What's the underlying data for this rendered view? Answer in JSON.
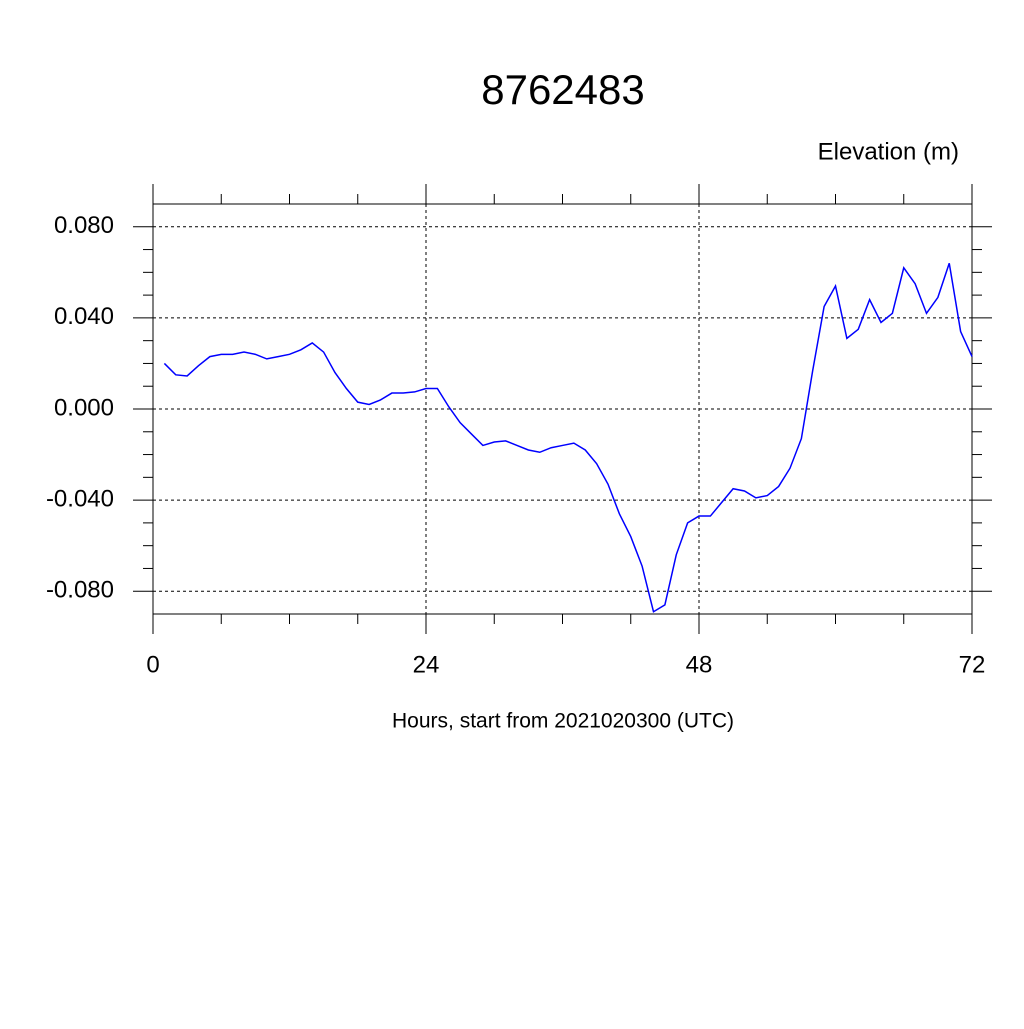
{
  "chart_data": {
    "type": "line",
    "title": "8762483",
    "ylabel": "Elevation (m)",
    "xlabel": "Hours, start from 2021020300 (UTC)",
    "x": [
      1,
      2,
      3,
      4,
      5,
      6,
      7,
      8,
      9,
      10,
      11,
      12,
      13,
      14,
      15,
      16,
      17,
      18,
      19,
      20,
      21,
      22,
      23,
      24,
      25,
      26,
      27,
      28,
      29,
      30,
      31,
      32,
      33,
      34,
      35,
      36,
      37,
      38,
      39,
      40,
      41,
      42,
      43,
      44,
      45,
      46,
      47,
      48,
      49,
      50,
      51,
      52,
      53,
      54,
      55,
      56,
      57,
      58,
      59,
      60,
      61,
      62,
      63,
      64,
      65,
      66,
      67,
      68,
      69,
      70,
      71,
      72
    ],
    "series": [
      {
        "color": "#0000ff",
        "values": [
          0.02,
          0.015,
          0.0145,
          0.019,
          0.023,
          0.024,
          0.024,
          0.025,
          0.024,
          0.022,
          0.023,
          0.024,
          0.026,
          0.029,
          0.025,
          0.016,
          0.009,
          0.003,
          0.002,
          0.004,
          0.007,
          0.007,
          0.0075,
          0.009,
          0.009,
          0.001,
          -0.006,
          -0.011,
          -0.016,
          -0.0145,
          -0.014,
          -0.016,
          -0.018,
          -0.019,
          -0.017,
          -0.016,
          -0.015,
          -0.018,
          -0.024,
          -0.033,
          -0.046,
          -0.056,
          -0.069,
          -0.089,
          -0.086,
          -0.064,
          -0.05,
          -0.047,
          -0.047,
          -0.041,
          -0.035,
          -0.036,
          -0.039,
          -0.038,
          -0.034,
          -0.026,
          -0.013,
          0.017,
          0.045,
          0.054,
          0.031,
          0.035,
          0.048,
          0.038,
          0.042,
          0.062,
          0.055,
          0.042,
          0.049,
          0.064,
          0.034,
          0.023
        ]
      }
    ],
    "xlim": [
      0,
      72
    ],
    "xticks": [
      0,
      24,
      48,
      72
    ],
    "ylim": [
      -0.09,
      0.09
    ],
    "yticks": [
      {
        "value": -0.08,
        "label": "-0.080"
      },
      {
        "value": -0.04,
        "label": "-0.040"
      },
      {
        "value": 0,
        "label": "0.000"
      },
      {
        "value": 0.04,
        "label": "0.040"
      },
      {
        "value": 0.08,
        "label": "0.080"
      }
    ],
    "grid": true
  }
}
